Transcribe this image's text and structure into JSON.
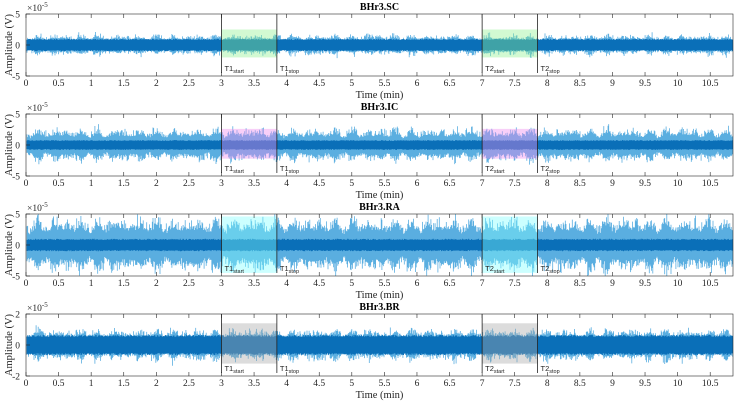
{
  "chart_data": [
    {
      "type": "line",
      "title": "BHr3.SC",
      "xlabel": "Time (min)",
      "ylabel": "Amplitude (V)",
      "exponent": "×10",
      "exponent_power": "-5",
      "xlim": [
        0,
        10.85
      ],
      "ylim": [
        -5,
        5
      ],
      "yticks": [
        "-5",
        "0",
        "5"
      ],
      "xticks": [
        "0",
        "0.5",
        "1",
        "1.5",
        "2",
        "2.5",
        "3",
        "3.5",
        "4",
        "4.5",
        "5",
        "5.5",
        "6",
        "6.5",
        "7",
        "7.5",
        "8",
        "8.5",
        "9",
        "9.5",
        "10",
        "10.5"
      ],
      "envelope_inner": 1.0,
      "envelope_outer": 1.6,
      "shade_color": "#8ef08e",
      "shade_range": [
        -2.0,
        2.5
      ]
    },
    {
      "type": "line",
      "title": "BHr3.IC",
      "xlabel": "Time (min)",
      "ylabel": "Amplitude (V)",
      "exponent": "×10",
      "exponent_power": "-5",
      "xlim": [
        0,
        10.85
      ],
      "ylim": [
        -5,
        5
      ],
      "yticks": [
        "-5",
        "0",
        "5"
      ],
      "xticks": [
        "0",
        "0.5",
        "1",
        "1.5",
        "2",
        "2.5",
        "3",
        "3.5",
        "4",
        "4.5",
        "5",
        "5.5",
        "6",
        "6.5",
        "7",
        "7.5",
        "8",
        "8.5",
        "9",
        "9.5",
        "10",
        "10.5"
      ],
      "envelope_inner": 0.8,
      "envelope_outer": 2.6,
      "shade_color": "#ee88ee",
      "shade_range": [
        -2.2,
        2.6
      ]
    },
    {
      "type": "line",
      "title": "BHr3.RA",
      "xlabel": "Time (min)",
      "ylabel": "Amplitude (V)",
      "exponent": "×10",
      "exponent_power": "-5",
      "xlim": [
        0,
        10.85
      ],
      "ylim": [
        -5,
        5
      ],
      "yticks": [
        "-5",
        "0",
        "5"
      ],
      "xticks": [
        "0",
        "0.5",
        "1",
        "1.5",
        "2",
        "2.5",
        "3",
        "3.5",
        "4",
        "4.5",
        "5",
        "5.5",
        "6",
        "6.5",
        "7",
        "7.5",
        "8",
        "8.5",
        "9",
        "9.5",
        "10",
        "10.5"
      ],
      "envelope_inner": 1.0,
      "envelope_outer": 4.2,
      "shade_color": "#80ffff",
      "shade_range": [
        -4.5,
        4.6
      ]
    },
    {
      "type": "line",
      "title": "BHr3.BR",
      "xlabel": "Time (min)",
      "ylabel": "Amplitude (V)",
      "exponent": "×10",
      "exponent_power": "-5",
      "xlim": [
        0,
        10.85
      ],
      "ylim": [
        -2,
        2
      ],
      "yticks": [
        "-2",
        "0",
        "2"
      ],
      "xticks": [
        "0",
        "0.5",
        "1",
        "1.5",
        "2",
        "2.5",
        "3",
        "3.5",
        "4",
        "4.5",
        "5",
        "5.5",
        "6",
        "6.5",
        "7",
        "7.5",
        "8",
        "8.5",
        "9",
        "9.5",
        "10",
        "10.5"
      ],
      "envelope_inner": 0.65,
      "envelope_outer": 1.0,
      "shade_color": "#a8a8a8",
      "shade_range": [
        -1.2,
        1.4
      ]
    }
  ],
  "markers": [
    {
      "label": "T1",
      "sub": "start",
      "x": 3.0
    },
    {
      "label": "T1",
      "sub": "stop",
      "x": 3.85
    },
    {
      "label": "T2",
      "sub": "start",
      "x": 7.0
    },
    {
      "label": "T2",
      "sub": "stop",
      "x": 7.85
    }
  ],
  "windows": [
    [
      3.0,
      3.85
    ],
    [
      7.0,
      7.85
    ]
  ],
  "colors": {
    "signal_dark": "#0a6fb8",
    "signal_light": "#5aaee0",
    "axis": "#262626"
  }
}
